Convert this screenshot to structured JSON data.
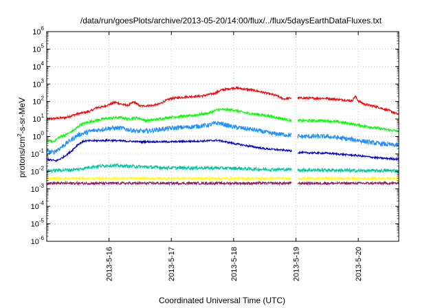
{
  "chart_data": {
    "type": "line",
    "title": "/data/run/goesPlots/archive/2013-05-20/14:00/flux/../flux/5daysEarthDataFluxes.txt",
    "xlabel": "Coordinated Universal Time (UTC)",
    "ylabel_base": "protons/cm",
    "ylabel_sup": "2",
    "ylabel_rest": "-s-sr-MeV",
    "y_scale": "log",
    "ylim_exp": [
      -6,
      6
    ],
    "y_ticks": [
      {
        "b": "10",
        "e": "6"
      },
      {
        "b": "10",
        "e": "5"
      },
      {
        "b": "10",
        "e": "4"
      },
      {
        "b": "10",
        "e": "3"
      },
      {
        "b": "10",
        "e": "2"
      },
      {
        "b": "10",
        "e": "1"
      },
      {
        "b": "10",
        "e": "0"
      },
      {
        "b": "10",
        "e": "-1"
      },
      {
        "b": "10",
        "e": "-2"
      },
      {
        "b": "10",
        "e": "-3"
      },
      {
        "b": "10",
        "e": "-4"
      },
      {
        "b": "10",
        "e": "-5"
      },
      {
        "b": "10",
        "e": "-6"
      }
    ],
    "x_range_days": [
      15.0,
      20.65
    ],
    "x_ticks": [
      {
        "label": "2013-5-16",
        "day": 16
      },
      {
        "label": "2013-5-17",
        "day": 17
      },
      {
        "label": "2013-5-18",
        "day": 18
      },
      {
        "label": "2013-5-19",
        "day": 19
      },
      {
        "label": "2013-5-20",
        "day": 20
      }
    ],
    "grid": true,
    "data_gap": [
      18.93,
      19.03
    ],
    "series": [
      {
        "color": "#ff0000",
        "noise": 0.06,
        "points": [
          [
            15.0,
            10
          ],
          [
            15.3,
            12
          ],
          [
            15.5,
            20
          ],
          [
            15.7,
            28
          ],
          [
            15.8,
            45
          ],
          [
            15.9,
            50
          ],
          [
            16.1,
            90
          ],
          [
            16.2,
            70
          ],
          [
            16.3,
            60
          ],
          [
            16.4,
            95
          ],
          [
            16.5,
            55
          ],
          [
            16.7,
            60
          ],
          [
            16.8,
            70
          ],
          [
            16.9,
            110
          ],
          [
            17.0,
            150
          ],
          [
            17.2,
            180
          ],
          [
            17.5,
            210
          ],
          [
            17.7,
            300
          ],
          [
            17.8,
            450
          ],
          [
            18.0,
            600
          ],
          [
            18.1,
            560
          ],
          [
            18.3,
            450
          ],
          [
            18.5,
            320
          ],
          [
            18.7,
            210
          ],
          [
            18.8,
            140
          ],
          [
            18.93,
            160
          ],
          [
            19.03,
            160
          ],
          [
            19.5,
            150
          ],
          [
            19.7,
            130
          ],
          [
            19.9,
            110
          ],
          [
            19.95,
            200
          ],
          [
            20.0,
            110
          ],
          [
            20.1,
            70
          ],
          [
            20.3,
            50
          ],
          [
            20.5,
            30
          ],
          [
            20.65,
            18
          ]
        ]
      },
      {
        "color": "#00ff00",
        "noise": 0.07,
        "points": [
          [
            15.0,
            0.6
          ],
          [
            15.1,
            0.5
          ],
          [
            15.2,
            0.9
          ],
          [
            15.35,
            1.5
          ],
          [
            15.45,
            2.5
          ],
          [
            15.55,
            5
          ],
          [
            15.7,
            7
          ],
          [
            15.9,
            10
          ],
          [
            16.1,
            12
          ],
          [
            16.2,
            12
          ],
          [
            16.3,
            10
          ],
          [
            16.45,
            12
          ],
          [
            16.6,
            8
          ],
          [
            16.8,
            10
          ],
          [
            17.0,
            13
          ],
          [
            17.3,
            15
          ],
          [
            17.6,
            22
          ],
          [
            17.75,
            35
          ],
          [
            18.0,
            33
          ],
          [
            18.2,
            22
          ],
          [
            18.4,
            18
          ],
          [
            18.6,
            14
          ],
          [
            18.8,
            10
          ],
          [
            18.93,
            8
          ],
          [
            19.03,
            8
          ],
          [
            19.5,
            8
          ],
          [
            19.8,
            6
          ],
          [
            20.0,
            4.5
          ],
          [
            20.3,
            3
          ],
          [
            20.65,
            2
          ]
        ]
      },
      {
        "color": "#1e90ff",
        "noise": 0.13,
        "points": [
          [
            15.0,
            0.15
          ],
          [
            15.1,
            0.12
          ],
          [
            15.2,
            0.2
          ],
          [
            15.35,
            0.5
          ],
          [
            15.5,
            1.2
          ],
          [
            15.7,
            2
          ],
          [
            16.0,
            3
          ],
          [
            16.2,
            3
          ],
          [
            16.45,
            2
          ],
          [
            16.6,
            2
          ],
          [
            16.8,
            2.5
          ],
          [
            17.0,
            3
          ],
          [
            17.3,
            3.5
          ],
          [
            17.6,
            4.5
          ],
          [
            17.75,
            6
          ],
          [
            18.0,
            3.5
          ],
          [
            18.3,
            2.5
          ],
          [
            18.6,
            1.5
          ],
          [
            18.93,
            1.2
          ],
          [
            19.03,
            1
          ],
          [
            19.5,
            1
          ],
          [
            20.0,
            0.6
          ],
          [
            20.3,
            0.4
          ],
          [
            20.65,
            0.3
          ]
        ]
      },
      {
        "color": "#0000cc",
        "noise": 0.05,
        "points": [
          [
            15.0,
            0.05
          ],
          [
            15.15,
            0.04
          ],
          [
            15.25,
            0.06
          ],
          [
            15.4,
            0.15
          ],
          [
            15.5,
            0.35
          ],
          [
            15.6,
            0.55
          ],
          [
            16.0,
            0.6
          ],
          [
            16.5,
            0.5
          ],
          [
            17.0,
            0.5
          ],
          [
            17.5,
            0.55
          ],
          [
            17.75,
            0.6
          ],
          [
            18.0,
            0.4
          ],
          [
            18.2,
            0.3
          ],
          [
            18.5,
            0.2
          ],
          [
            18.93,
            0.15
          ],
          [
            19.03,
            0.12
          ],
          [
            19.5,
            0.11
          ],
          [
            20.0,
            0.08
          ],
          [
            20.3,
            0.06
          ],
          [
            20.65,
            0.05
          ]
        ]
      },
      {
        "color": "#00c8a0",
        "noise": 0.09,
        "points": [
          [
            15.0,
            0.011
          ],
          [
            15.3,
            0.012
          ],
          [
            15.5,
            0.013
          ],
          [
            15.7,
            0.018
          ],
          [
            16.0,
            0.022
          ],
          [
            16.3,
            0.02
          ],
          [
            16.6,
            0.018
          ],
          [
            17.0,
            0.016
          ],
          [
            17.5,
            0.016
          ],
          [
            18.0,
            0.015
          ],
          [
            18.5,
            0.013
          ],
          [
            18.93,
            0.013
          ],
          [
            19.03,
            0.012
          ],
          [
            19.5,
            0.012
          ],
          [
            20.0,
            0.011
          ],
          [
            20.65,
            0.011
          ]
        ]
      },
      {
        "color": "#ffff00",
        "noise": 0.06,
        "points": [
          [
            15.0,
            0.004
          ],
          [
            16.0,
            0.004
          ],
          [
            17.0,
            0.004
          ],
          [
            18.0,
            0.004
          ],
          [
            18.93,
            0.004
          ],
          [
            19.03,
            0.004
          ],
          [
            20.0,
            0.004
          ],
          [
            20.65,
            0.004
          ]
        ]
      },
      {
        "color": "#8b2060",
        "noise": 0.07,
        "points": [
          [
            15.0,
            0.0021
          ],
          [
            16.0,
            0.0021
          ],
          [
            17.0,
            0.0021
          ],
          [
            18.0,
            0.0021
          ],
          [
            18.93,
            0.0021
          ],
          [
            19.03,
            0.0021
          ],
          [
            20.0,
            0.0021
          ],
          [
            20.65,
            0.0021
          ]
        ]
      }
    ]
  }
}
